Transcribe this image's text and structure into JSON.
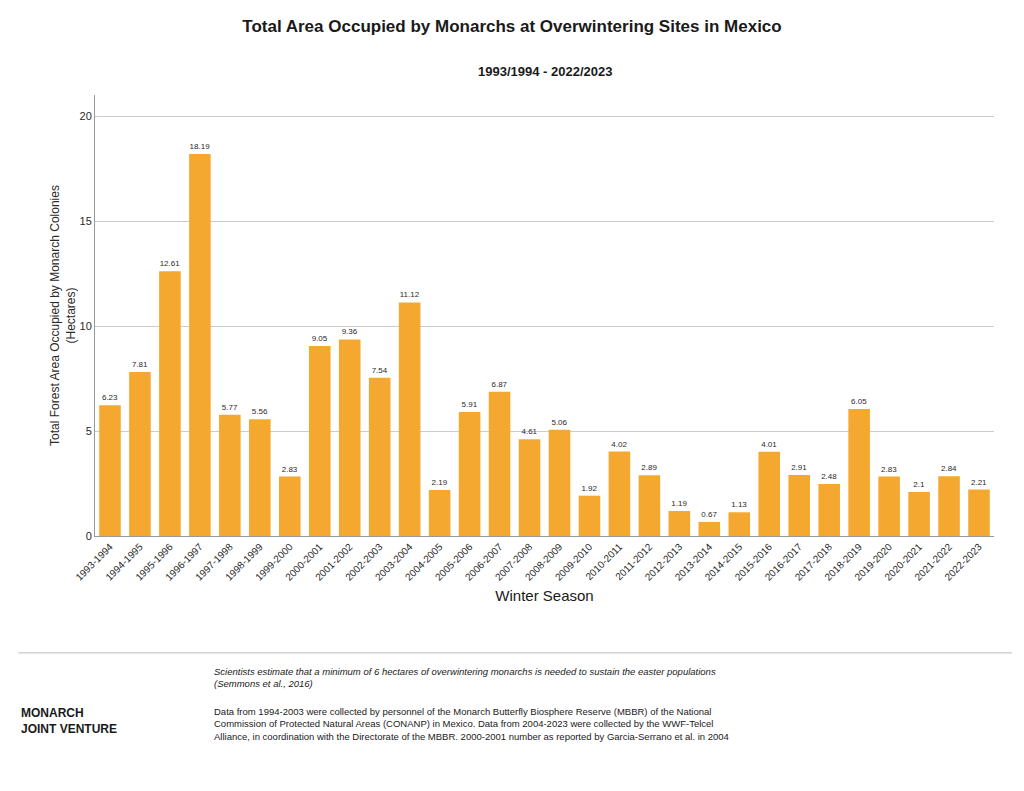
{
  "chart_data": {
    "type": "bar",
    "title": "Total Area Occupied by Monarchs at Overwintering Sites in Mexico",
    "subtitle": "1993/1994 - 2022/2023",
    "xlabel": "Winter Season",
    "ylabel": "Total Forest Area Occupied by Monarch Colonies\n(Hectares)",
    "categories": [
      "1993-1994",
      "1994-1995",
      "1995-1996",
      "1996-1997",
      "1997-1998",
      "1998-1999",
      "1999-2000",
      "2000-2001",
      "2001-2002",
      "2002-2003",
      "2003-2004",
      "2004-2005",
      "2005-2006",
      "2006-2007",
      "2007-2008",
      "2008-2009",
      "2009-2010",
      "2010-2011",
      "2011-2012",
      "2012-2013",
      "2013-2014",
      "2014-2015",
      "2015-2016",
      "2016-2017",
      "2017-2018",
      "2018-2019",
      "2019-2020",
      "2020-2021",
      "2021-2022",
      "2022-2023"
    ],
    "values": [
      6.23,
      7.81,
      12.61,
      18.19,
      5.77,
      5.56,
      2.83,
      9.05,
      9.36,
      7.54,
      11.12,
      2.19,
      5.91,
      6.87,
      4.61,
      5.06,
      1.92,
      4.02,
      2.89,
      1.19,
      0.67,
      1.13,
      4.01,
      2.91,
      2.48,
      6.05,
      2.83,
      2.1,
      2.84,
      2.21
    ],
    "color": "#F5A830",
    "ylim": [
      0,
      21
    ],
    "yticks": [
      0,
      5,
      10,
      15,
      20
    ],
    "grid": true,
    "data_labels": true,
    "annotations": [
      "Scientists estimate that a minimum of 6 hectares of overwintering monarchs is needed to sustain the easter populations\n(Semmons et al., 2016)",
      "Data from 1994-2003 were collected by personnel of the Monarch Butterfly Biosphere Reserve (MBBR) of the National\nCommission of Protected Natural Areas (CONANP) in Mexico. Data from 2004-2023 were collected by the WWF-Telcel\nAlliance, in coordination with the Directorate of the MBBR. 2000-2001 number as reported by Garcia-Serrano et al. in 2004",
      "MONARCH\nJOINT VENTURE"
    ]
  }
}
